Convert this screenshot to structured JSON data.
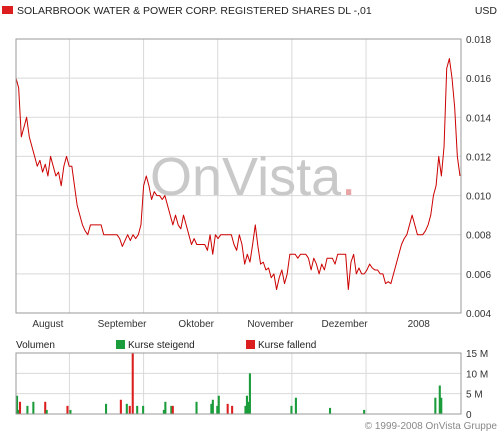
{
  "header": {
    "title": "SOLARBROOK WATER & POWER CORP. REGISTERED SHARES DL -,01",
    "currency": "USD"
  },
  "watermark": {
    "text_main": "OnVista",
    "text_dot": ".",
    "color": "#c9c9c9",
    "dot_color": "#e8a5a5"
  },
  "colors": {
    "price_line": "#cc0000",
    "rising": "#1a9c3a",
    "falling": "#dd1e1e",
    "grid": "#d9d9d9",
    "frame": "#9a9a9a"
  },
  "volume_panel": {
    "title": "Volumen",
    "legend_rising": "Kurse steigend",
    "legend_falling": "Kurse fallend"
  },
  "copyright": "© 1999-2008 OnVista Gruppe",
  "chart_data": [
    {
      "type": "line",
      "series": [
        {
          "values": [
            0.016,
            0.0155,
            0.013,
            0.0135,
            0.014,
            0.013,
            0.0125,
            0.012,
            0.0115,
            0.0118,
            0.0112,
            0.0116,
            0.011,
            0.012,
            0.0115,
            0.011,
            0.0112,
            0.0105,
            0.0115,
            0.012,
            0.0115,
            0.0115,
            0.0105,
            0.0095,
            0.009,
            0.0085,
            0.0082,
            0.008,
            0.0085,
            0.0085,
            0.0085,
            0.0085,
            0.0085,
            0.008,
            0.008,
            0.008,
            0.008,
            0.008,
            0.008,
            0.0078,
            0.0074,
            0.0077,
            0.008,
            0.0077,
            0.008,
            0.0078,
            0.008,
            0.0085,
            0.0105,
            0.011,
            0.0105,
            0.0098,
            0.0102,
            0.01,
            0.01,
            0.0098,
            0.01,
            0.0095,
            0.009,
            0.0085,
            0.009,
            0.0085,
            0.0083,
            0.009,
            0.0085,
            0.008,
            0.0075,
            0.0078,
            0.0075,
            0.0075,
            0.0075,
            0.0075,
            0.0072,
            0.008,
            0.007,
            0.008,
            0.0078,
            0.008,
            0.008,
            0.008,
            0.008,
            0.008,
            0.0075,
            0.0072,
            0.008,
            0.0075,
            0.0065,
            0.007,
            0.0066,
            0.0075,
            0.0085,
            0.0074,
            0.0065,
            0.0066,
            0.0062,
            0.0063,
            0.0058,
            0.006,
            0.0052,
            0.0058,
            0.0062,
            0.0055,
            0.006,
            0.007,
            0.007,
            0.007,
            0.0068,
            0.007,
            0.007,
            0.007,
            0.0068,
            0.0062,
            0.0068,
            0.0065,
            0.006,
            0.0065,
            0.0062,
            0.0068,
            0.0068,
            0.0068,
            0.0065,
            0.007,
            0.007,
            0.007,
            0.007,
            0.0052,
            0.0066,
            0.007,
            0.006,
            0.0063,
            0.006,
            0.006,
            0.0062,
            0.0065,
            0.0063,
            0.0062,
            0.0062,
            0.006,
            0.006,
            0.0055,
            0.0056,
            0.0055,
            0.006,
            0.0065,
            0.007,
            0.0075,
            0.0078,
            0.008,
            0.0085,
            0.009,
            0.0085,
            0.008,
            0.008,
            0.008,
            0.0082,
            0.0085,
            0.009,
            0.01,
            0.0105,
            0.012,
            0.011,
            0.0125,
            0.0165,
            0.017,
            0.016,
            0.0145,
            0.012,
            0.011
          ]
        }
      ],
      "x_tick_labels": [
        "August",
        "September",
        "Oktober",
        "November",
        "Dezember",
        "2008"
      ],
      "y_tick_labels": [
        "0.004",
        "0.006",
        "0.008",
        "0.010",
        "0.012",
        "0.014",
        "0.016",
        "0.018"
      ],
      "ylim": [
        0.004,
        0.018
      ],
      "grid": true
    },
    {
      "type": "bar",
      "series": [
        {
          "name": "Kurse steigend",
          "values": [
            4.5,
            1,
            0,
            0,
            0,
            0,
            0,
            2,
            0,
            0,
            0,
            3,
            0,
            0,
            0,
            0,
            0,
            0,
            0,
            0,
            1,
            0,
            0,
            0,
            0,
            0,
            0,
            0,
            0,
            0,
            0,
            0,
            0,
            0,
            0,
            0,
            1,
            0,
            0,
            0,
            0,
            0,
            0,
            0,
            0,
            0,
            0,
            0,
            0,
            0,
            0,
            0,
            0,
            0,
            0,
            0,
            0,
            0,
            0,
            0,
            2.5,
            0,
            0,
            0,
            0,
            0,
            0,
            0,
            0,
            0,
            0,
            0,
            0,
            0,
            2.5,
            0,
            0,
            0,
            0,
            0,
            0,
            2,
            0,
            0,
            0,
            2,
            0,
            0,
            0,
            0,
            0,
            0,
            0,
            0,
            0,
            0,
            0,
            0,
            0,
            1,
            3,
            0,
            0,
            0,
            2,
            0,
            0,
            0,
            0,
            0,
            0,
            0,
            0,
            0,
            0,
            0,
            0,
            0,
            0,
            0,
            0,
            3,
            0,
            0,
            0,
            0,
            0,
            0,
            0,
            0,
            0,
            2.5,
            3.5,
            0,
            0,
            2,
            4.5,
            0,
            0,
            0,
            0,
            0,
            0,
            0,
            0,
            0,
            0,
            0,
            0,
            0,
            0,
            0,
            0,
            0,
            2,
            4.5,
            3,
            10,
            0,
            0,
            0,
            0,
            0,
            0,
            0,
            0,
            0,
            0,
            0,
            0,
            0,
            0,
            0,
            0,
            0,
            0,
            0,
            0,
            0,
            0,
            0,
            0,
            0,
            0,
            0,
            2,
            0,
            0,
            4,
            0,
            0,
            0,
            0,
            0,
            0,
            0,
            0,
            0,
            0,
            0,
            0,
            0,
            0,
            0,
            0,
            0,
            0,
            0,
            0,
            0,
            0,
            1.5,
            0,
            0,
            0,
            0,
            0,
            0,
            0,
            0,
            0,
            0,
            0,
            0,
            0,
            0,
            0,
            0,
            0,
            0,
            0,
            0,
            0,
            0,
            1,
            0,
            0,
            0,
            0,
            0,
            0,
            0,
            0,
            0,
            0,
            0,
            0,
            0,
            0,
            0,
            0,
            0,
            0,
            0,
            0,
            0,
            0,
            0,
            0,
            0,
            0,
            0,
            0,
            0,
            0,
            0,
            0,
            0,
            0,
            0,
            0,
            0,
            0,
            0,
            0,
            0,
            0,
            0,
            0,
            0,
            0,
            0,
            4,
            0,
            0,
            7,
            4,
            0,
            0
          ]
        },
        {
          "name": "Kurse fallend",
          "values": [
            0,
            0,
            3,
            0,
            0,
            0,
            0,
            0,
            0,
            0,
            0,
            0,
            0,
            0,
            0,
            0,
            0,
            0,
            0,
            3,
            0,
            0,
            0,
            0,
            0,
            0,
            0,
            0,
            0,
            0,
            0,
            0,
            0,
            0,
            2,
            0,
            0,
            0,
            0,
            0,
            0,
            0,
            0,
            0,
            0,
            0,
            0,
            0,
            0,
            0,
            0,
            0,
            0,
            0,
            0,
            0,
            0,
            0,
            0,
            0,
            0,
            0,
            0,
            0,
            0,
            0,
            0,
            0,
            0,
            0,
            3.5,
            0,
            0,
            0,
            0,
            0,
            2,
            0,
            15,
            0,
            0,
            0,
            0,
            0,
            0,
            0,
            0,
            0,
            0,
            0,
            0,
            0,
            0,
            0,
            0,
            0,
            0,
            0,
            0,
            0,
            0,
            0,
            0,
            0,
            0,
            2,
            0,
            0,
            0,
            0,
            0,
            0,
            0,
            0,
            0,
            0,
            0,
            0,
            0,
            0,
            0,
            0,
            0,
            0,
            0,
            0,
            0,
            0,
            0,
            0,
            0,
            0,
            0,
            0,
            0,
            0,
            0,
            0,
            0,
            0,
            0,
            0,
            2.5,
            0,
            0,
            2,
            0,
            0,
            0,
            0,
            0,
            0,
            0,
            0,
            0,
            0,
            0,
            0,
            0,
            0,
            0,
            0,
            0,
            0,
            0,
            0,
            0,
            0,
            0,
            0,
            0,
            0,
            0,
            0,
            0,
            0,
            0,
            0,
            0,
            0,
            0,
            0,
            0,
            0,
            0,
            0,
            0,
            0,
            0,
            0,
            0,
            0,
            0,
            0,
            0,
            0,
            0,
            0,
            0,
            0,
            0,
            0,
            0,
            0,
            0,
            0,
            0,
            0,
            0,
            0,
            0,
            0,
            0,
            0,
            0,
            0,
            0,
            0,
            0,
            0,
            0,
            0,
            0,
            0,
            0,
            0,
            0,
            0,
            0,
            0,
            0,
            0,
            0,
            0,
            0,
            0,
            0,
            0,
            0,
            0,
            0,
            0,
            0,
            0,
            0,
            0,
            0,
            0,
            0,
            0,
            0,
            0,
            0,
            0,
            0,
            0,
            0,
            0,
            0,
            0,
            0,
            0,
            0,
            0,
            0,
            0,
            0,
            0,
            0,
            0,
            0,
            0,
            0,
            0,
            0,
            0,
            0,
            0,
            0,
            0,
            0,
            0,
            0,
            0,
            0,
            0,
            0,
            0,
            0,
            0,
            0,
            0,
            0,
            0,
            0,
            0,
            0,
            0,
            0,
            0
          ]
        }
      ],
      "y_tick_labels": [
        "0",
        "5 M",
        "10 M",
        "15 M"
      ],
      "ylim": [
        0,
        15
      ],
      "grid": true
    }
  ]
}
